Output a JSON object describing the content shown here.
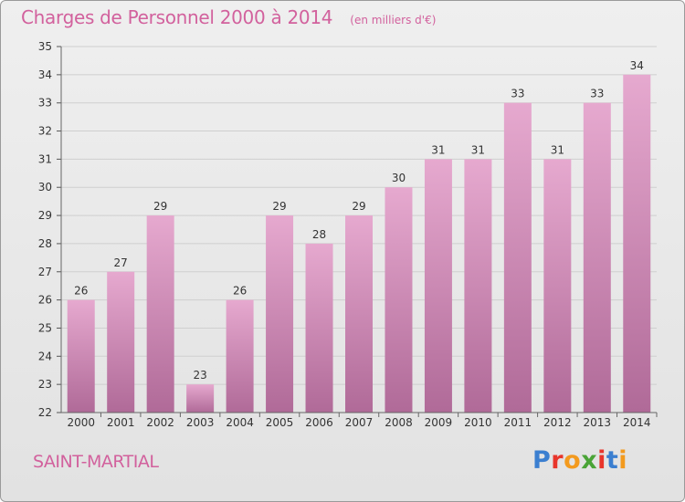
{
  "header": {
    "title": "Charges de Personnel 2000 à 2014",
    "subtitle": "(en milliers d'€)"
  },
  "footer": {
    "commune": "SAINT-MARTIAL",
    "logo": "Proxiti",
    "logo_colors": [
      "#3b7fd0",
      "#e8352b",
      "#f39a1e",
      "#4aa437",
      "#e8352b",
      "#3b7fd0",
      "#f39a1e"
    ]
  },
  "chart_data": {
    "type": "bar",
    "categories": [
      "2000",
      "2001",
      "2002",
      "2003",
      "2004",
      "2005",
      "2006",
      "2007",
      "2008",
      "2009",
      "2010",
      "2011",
      "2012",
      "2013",
      "2014"
    ],
    "values": [
      26,
      27,
      29,
      23,
      26,
      29,
      28,
      29,
      30,
      31,
      31,
      33,
      31,
      33,
      34
    ],
    "data_labels": [
      "26",
      "27",
      "29",
      "23",
      "26",
      "29",
      "28",
      "29",
      "30",
      "31",
      "31",
      "33",
      "31",
      "33",
      "34"
    ],
    "ylim": [
      22,
      35
    ],
    "yticks": [
      "22",
      "23",
      "24",
      "25",
      "26",
      "27",
      "28",
      "29",
      "30",
      "31",
      "32",
      "33",
      "34",
      "35"
    ],
    "grid": true,
    "colors": {
      "bar_top": "#e6a9cf",
      "bar_bottom": "#b06a98",
      "grid": "#cfcfcf",
      "axis_text": "#333333"
    }
  }
}
